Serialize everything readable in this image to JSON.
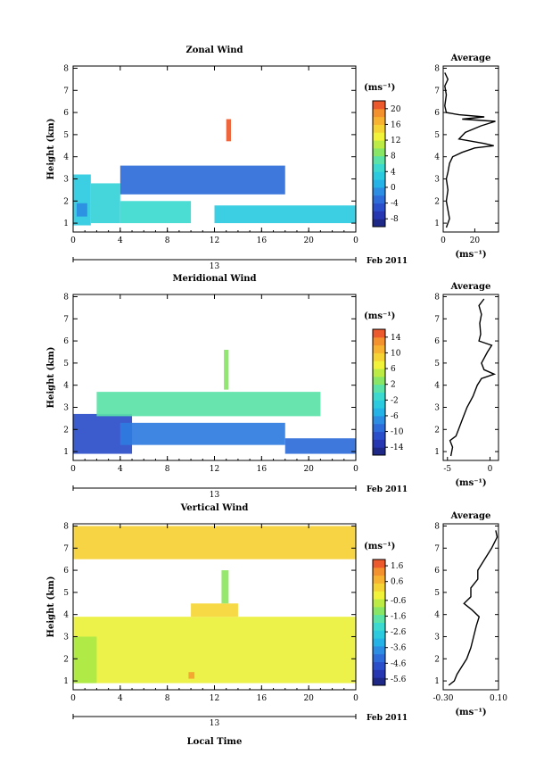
{
  "chart_data": [
    {
      "type": "heatmap",
      "title": "Zonal Wind",
      "ylabel": "Height (km)",
      "xlabel": "",
      "x_ticks": [
        "0",
        "4",
        "8",
        "12",
        "16",
        "20",
        "0"
      ],
      "y_ticks": [
        "1",
        "2",
        "3",
        "4",
        "5",
        "6",
        "7",
        "8"
      ],
      "xlim": [
        0,
        24
      ],
      "ylim": [
        0.6,
        8.1
      ],
      "date_axis": {
        "day": "13",
        "label": "Feb 2011"
      },
      "colorbar": {
        "unit": "(ms⁻¹)",
        "ticks": [
          "-8",
          "-4",
          "0",
          "4",
          "8",
          "12",
          "16",
          "20"
        ],
        "range": [
          -10,
          22
        ]
      },
      "regions": [
        {
          "x": [
            0,
            1.5
          ],
          "y": [
            0.9,
            3.2
          ],
          "value": 3
        },
        {
          "x": [
            1.5,
            4
          ],
          "y": [
            1.0,
            2.8
          ],
          "value": 4
        },
        {
          "x": [
            4,
            10
          ],
          "y": [
            1.0,
            2.0
          ],
          "value": 5
        },
        {
          "x": [
            12,
            24
          ],
          "y": [
            1.0,
            1.8
          ],
          "value": 3
        },
        {
          "x": [
            0.3,
            1.2
          ],
          "y": [
            1.3,
            1.9
          ],
          "value": -1
        },
        {
          "x": [
            4,
            18
          ],
          "y": [
            2.3,
            3.6
          ],
          "value": -3
        },
        {
          "x": [
            13,
            13.4
          ],
          "y": [
            4.7,
            5.7
          ],
          "value": 21
        }
      ],
      "average_profile": {
        "title": "Average",
        "xlabel": "(ms⁻¹)",
        "x_ticks": [
          "0",
          "20"
        ],
        "xlim": [
          0,
          35
        ],
        "height": [
          0.8,
          1.2,
          1.6,
          2.0,
          2.5,
          3.0,
          3.3,
          3.7,
          4.0,
          4.2,
          4.4,
          4.5,
          4.6,
          4.8,
          5.1,
          5.4,
          5.6,
          5.7,
          5.8,
          5.9,
          6.0,
          6.3,
          6.8,
          7.2,
          7.5,
          7.8
        ],
        "value": [
          2,
          4,
          3,
          2,
          3,
          2,
          3,
          4,
          6,
          12,
          20,
          32,
          26,
          10,
          14,
          24,
          33,
          12,
          26,
          10,
          2,
          1,
          2,
          1,
          3,
          1
        ]
      }
    },
    {
      "type": "heatmap",
      "title": "Meridional Wind",
      "ylabel": "Height (km)",
      "xlabel": "",
      "x_ticks": [
        "0",
        "4",
        "8",
        "12",
        "16",
        "20",
        "0"
      ],
      "y_ticks": [
        "1",
        "2",
        "3",
        "4",
        "5",
        "6",
        "7",
        "8"
      ],
      "xlim": [
        0,
        24
      ],
      "ylim": [
        0.6,
        8.1
      ],
      "date_axis": {
        "day": "13",
        "label": "Feb 2011"
      },
      "colorbar": {
        "unit": "(ms⁻¹)",
        "ticks": [
          "-14",
          "-10",
          "-6",
          "-2",
          "2",
          "6",
          "10",
          "14"
        ],
        "range": [
          -16,
          16
        ]
      },
      "regions": [
        {
          "x": [
            0,
            5
          ],
          "y": [
            0.9,
            2.7
          ],
          "value": -11
        },
        {
          "x": [
            4,
            18
          ],
          "y": [
            1.3,
            2.3
          ],
          "value": -8
        },
        {
          "x": [
            18,
            24
          ],
          "y": [
            0.9,
            1.6
          ],
          "value": -9
        },
        {
          "x": [
            2,
            21
          ],
          "y": [
            2.6,
            3.7
          ],
          "value": 1
        },
        {
          "x": [
            12.8,
            13.2
          ],
          "y": [
            3.8,
            5.6
          ],
          "value": 3
        }
      ],
      "average_profile": {
        "title": "Average",
        "xlabel": "(ms⁻¹)",
        "x_ticks": [
          "-5",
          "0"
        ],
        "xlim": [
          -5.5,
          1
        ],
        "height": [
          0.8,
          1.2,
          1.5,
          1.7,
          2.0,
          2.5,
          3.0,
          3.5,
          4.0,
          4.3,
          4.5,
          4.7,
          5.0,
          5.5,
          5.8,
          6.0,
          6.3,
          6.8,
          7.2,
          7.6,
          7.9
        ],
        "value": [
          -4.6,
          -4.4,
          -4.7,
          -4.0,
          -3.7,
          -3.2,
          -2.7,
          -2.0,
          -1.5,
          -1.0,
          0.5,
          -0.7,
          -1.0,
          -0.3,
          0.2,
          -1.3,
          -1.1,
          -1.2,
          -1.0,
          -1.3,
          -0.7
        ]
      }
    },
    {
      "type": "heatmap",
      "title": "Vertical Wind",
      "ylabel": "Height (km)",
      "xlabel": "Local Time",
      "x_ticks": [
        "0",
        "4",
        "8",
        "12",
        "16",
        "20",
        "0"
      ],
      "y_ticks": [
        "1",
        "2",
        "3",
        "4",
        "5",
        "6",
        "7",
        "8"
      ],
      "xlim": [
        0,
        24
      ],
      "ylim": [
        0.6,
        8.1
      ],
      "date_axis": {
        "day": "13",
        "label": "Feb 2011"
      },
      "colorbar": {
        "unit": "(ms⁻¹)",
        "ticks": [
          "-5.6",
          "-4.6",
          "-3.6",
          "-2.6",
          "-1.6",
          "-0.6",
          "0.6",
          "1.6"
        ],
        "range": [
          -6,
          2
        ]
      },
      "regions": [
        {
          "x": [
            0,
            24
          ],
          "y": [
            0.9,
            3.9
          ],
          "value": -0.3
        },
        {
          "x": [
            0,
            2
          ],
          "y": [
            0.9,
            3.0
          ],
          "value": -0.9
        },
        {
          "x": [
            10,
            14
          ],
          "y": [
            3.9,
            4.5
          ],
          "value": 0.2
        },
        {
          "x": [
            12.6,
            13.2
          ],
          "y": [
            4.5,
            6.0
          ],
          "value": -1.2
        },
        {
          "x": [
            0,
            24
          ],
          "y": [
            6.5,
            8.0
          ],
          "value": 0.3
        },
        {
          "x": [
            9.8,
            10.3
          ],
          "y": [
            1.1,
            1.4
          ],
          "value": 1.0
        }
      ],
      "average_profile": {
        "title": "Average",
        "xlabel": "(ms⁻¹)",
        "x_ticks": [
          "-0.30",
          "0.10"
        ],
        "xlim": [
          -0.3,
          0.1
        ],
        "height": [
          0.8,
          1.0,
          1.3,
          1.6,
          2.0,
          2.5,
          3.0,
          3.5,
          3.9,
          4.2,
          4.5,
          4.8,
          5.2,
          5.6,
          6.0,
          6.5,
          7.0,
          7.5,
          7.8
        ],
        "value": [
          -0.26,
          -0.22,
          -0.2,
          -0.17,
          -0.13,
          -0.1,
          -0.08,
          -0.06,
          -0.04,
          -0.09,
          -0.15,
          -0.1,
          -0.1,
          -0.05,
          -0.05,
          0.0,
          0.05,
          0.09,
          0.08
        ]
      }
    }
  ]
}
